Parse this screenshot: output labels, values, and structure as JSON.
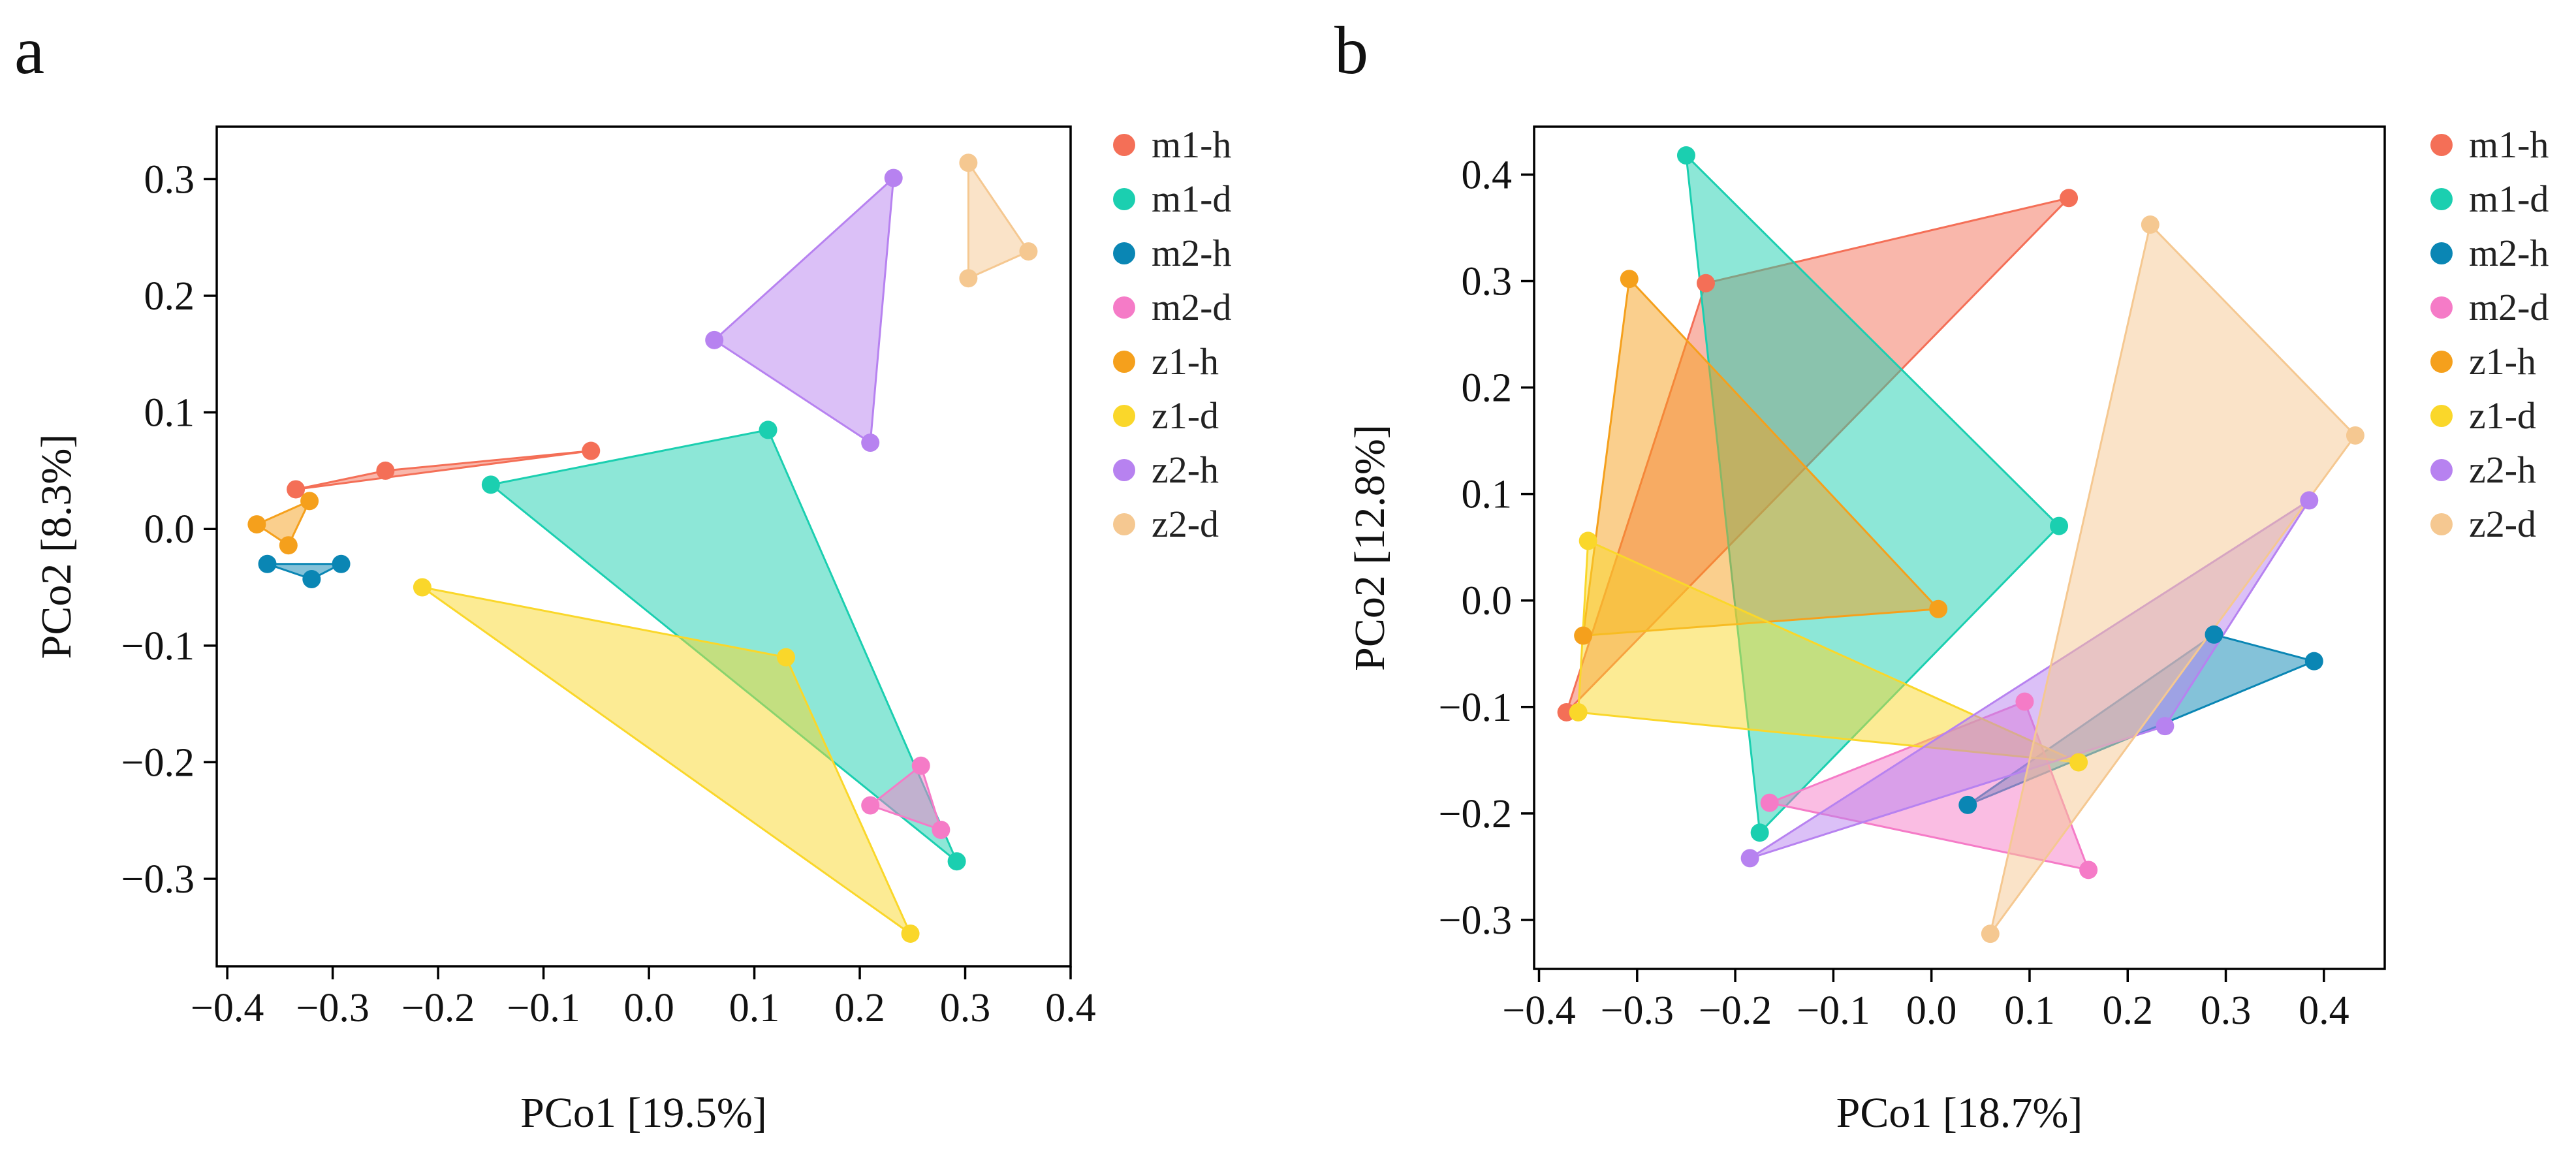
{
  "chart_data": [
    {
      "type": "scatter",
      "panel_label": "a",
      "xlabel": "PCo1 [19.5%]",
      "ylabel": "PCo2 [8.3%]",
      "xlim": [
        -0.41,
        0.4
      ],
      "ylim": [
        -0.375,
        0.345
      ],
      "xticks": [
        -0.4,
        -0.3,
        -0.2,
        -0.1,
        0.0,
        0.1,
        0.2,
        0.3,
        0.4
      ],
      "xtick_labels": [
        "−0.4",
        "−0.3",
        "−0.2",
        "−0.1",
        "0.0",
        "0.1",
        "0.2",
        "0.3",
        "0.4"
      ],
      "yticks": [
        -0.3,
        -0.2,
        -0.1,
        0.0,
        0.1,
        0.2,
        0.3
      ],
      "ytick_labels": [
        "−0.3",
        "−0.2",
        "−0.1",
        "0.0",
        "0.1",
        "0.2",
        "0.3"
      ],
      "grid": false,
      "legend_position": "outside-right",
      "series": [
        {
          "name": "m1-h",
          "color": "#F46F57",
          "points": [
            [
              -0.335,
              0.034
            ],
            [
              -0.25,
              0.05
            ],
            [
              -0.055,
              0.067
            ]
          ]
        },
        {
          "name": "m1-d",
          "color": "#1BCFB0",
          "points": [
            [
              -0.15,
              0.038
            ],
            [
              0.113,
              0.085
            ],
            [
              0.292,
              -0.285
            ]
          ]
        },
        {
          "name": "m2-h",
          "color": "#0A86B4",
          "points": [
            [
              -0.362,
              -0.03
            ],
            [
              -0.32,
              -0.043
            ],
            [
              -0.292,
              -0.03
            ]
          ]
        },
        {
          "name": "m2-d",
          "color": "#F57BC7",
          "points": [
            [
              0.21,
              -0.237
            ],
            [
              0.258,
              -0.203
            ],
            [
              0.277,
              -0.258
            ]
          ]
        },
        {
          "name": "z1-h",
          "color": "#F5A01C",
          "points": [
            [
              -0.372,
              0.004
            ],
            [
              -0.342,
              -0.014
            ],
            [
              -0.322,
              0.024
            ]
          ]
        },
        {
          "name": "z1-d",
          "color": "#FAD72A",
          "points": [
            [
              -0.215,
              -0.05
            ],
            [
              0.13,
              -0.11
            ],
            [
              0.248,
              -0.347
            ]
          ]
        },
        {
          "name": "z2-h",
          "color": "#B782F0",
          "points": [
            [
              0.062,
              0.162
            ],
            [
              0.21,
              0.074
            ],
            [
              0.232,
              0.301
            ]
          ]
        },
        {
          "name": "z2-d",
          "color": "#F5C891",
          "points": [
            [
              0.303,
              0.314
            ],
            [
              0.303,
              0.215
            ],
            [
              0.36,
              0.238
            ]
          ]
        }
      ]
    },
    {
      "type": "scatter",
      "panel_label": "b",
      "xlabel": "PCo1 [18.7%]",
      "ylabel": "PCo2 [12.8%]",
      "xlim": [
        -0.405,
        0.462
      ],
      "ylim": [
        -0.346,
        0.445
      ],
      "xticks": [
        -0.4,
        -0.3,
        -0.2,
        -0.1,
        0.0,
        0.1,
        0.2,
        0.3,
        0.4
      ],
      "xtick_labels": [
        "−0.4",
        "−0.3",
        "−0.2",
        "−0.1",
        "0.0",
        "0.1",
        "0.2",
        "0.3",
        "0.4"
      ],
      "yticks": [
        -0.3,
        -0.2,
        -0.1,
        0.0,
        0.1,
        0.2,
        0.3,
        0.4
      ],
      "ytick_labels": [
        "−0.3",
        "−0.2",
        "−0.1",
        "0.0",
        "0.1",
        "0.2",
        "0.3",
        "0.4"
      ],
      "grid": false,
      "legend_position": "outside-right",
      "series": [
        {
          "name": "m1-h",
          "color": "#F46F57",
          "points": [
            [
              -0.372,
              -0.105
            ],
            [
              -0.23,
              0.298
            ],
            [
              0.14,
              0.378
            ]
          ]
        },
        {
          "name": "m1-d",
          "color": "#1BCFB0",
          "points": [
            [
              -0.25,
              0.418
            ],
            [
              0.13,
              0.07
            ],
            [
              -0.175,
              -0.218
            ]
          ]
        },
        {
          "name": "m2-h",
          "color": "#0A86B4",
          "points": [
            [
              0.037,
              -0.192
            ],
            [
              0.288,
              -0.032
            ],
            [
              0.39,
              -0.057
            ]
          ]
        },
        {
          "name": "m2-d",
          "color": "#F57BC7",
          "points": [
            [
              -0.165,
              -0.19
            ],
            [
              0.095,
              -0.095
            ],
            [
              0.16,
              -0.253
            ]
          ]
        },
        {
          "name": "z1-h",
          "color": "#F5A01C",
          "points": [
            [
              -0.308,
              0.302
            ],
            [
              -0.355,
              -0.033
            ],
            [
              0.007,
              -0.008
            ]
          ]
        },
        {
          "name": "z1-d",
          "color": "#FAD72A",
          "points": [
            [
              -0.35,
              0.056
            ],
            [
              -0.36,
              -0.105
            ],
            [
              0.15,
              -0.152
            ]
          ]
        },
        {
          "name": "z2-h",
          "color": "#B782F0",
          "points": [
            [
              -0.185,
              -0.242
            ],
            [
              0.238,
              -0.118
            ],
            [
              0.385,
              0.094
            ]
          ]
        },
        {
          "name": "z2-d",
          "color": "#F5C891",
          "points": [
            [
              0.223,
              0.353
            ],
            [
              0.432,
              0.155
            ],
            [
              0.06,
              -0.313
            ]
          ]
        }
      ]
    }
  ]
}
